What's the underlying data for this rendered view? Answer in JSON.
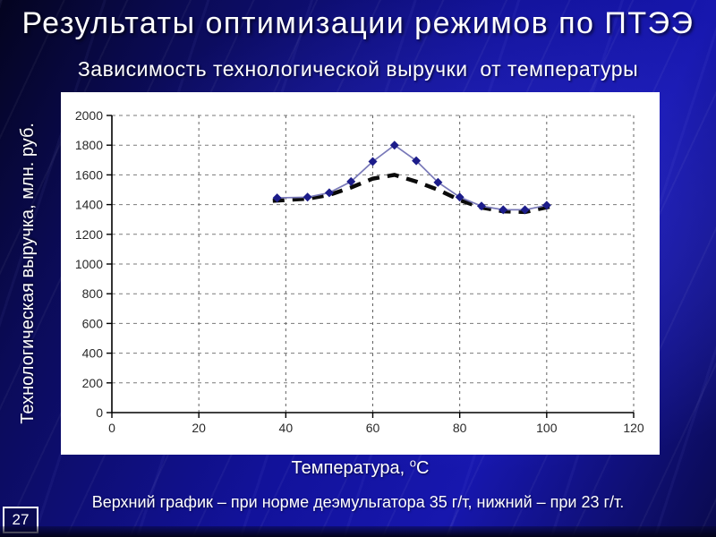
{
  "slide": {
    "title": "Результаты оптимизации режимов по ПТЭЭ",
    "subtitle": "Зависимость технологической выручки  от температуры",
    "caption": "Верхний график – при норме деэмульгатора 35 г/т, нижний – при 23 г/т.",
    "page_number": "27"
  },
  "colors": {
    "background_dark": "#0a0a4e",
    "background_bright": "#1717ae",
    "chart_background": "#ffffff",
    "text": "#ffffff",
    "tick_text": "#2a2a2a",
    "grid": "#7a7a7a",
    "axis": "#000000"
  },
  "chart_data": {
    "type": "line",
    "title": "",
    "xlabel": "Температура, оС",
    "xlabel_parts": {
      "prefix": "Температура, ",
      "sup": "о",
      "suffix": "С"
    },
    "ylabel": "Технологическая выручка, млн. руб.",
    "xlim": [
      0,
      120
    ],
    "ylim": [
      0,
      2000
    ],
    "xticks": [
      0,
      20,
      40,
      60,
      80,
      100,
      120
    ],
    "yticks": [
      0,
      200,
      400,
      600,
      800,
      1000,
      1200,
      1400,
      1600,
      1800,
      2000
    ],
    "grid": true,
    "legend": "none",
    "series": [
      {
        "name": "при норме деэмульгатора 35 г/т (верхний график)",
        "style": "solid",
        "marker": "diamond",
        "line_color": "#7878b8",
        "marker_color": "#1c1c8a",
        "x": [
          38,
          45,
          50,
          55,
          60,
          65,
          70,
          75,
          80,
          85,
          90,
          95,
          100
        ],
        "y": [
          1445,
          1450,
          1480,
          1555,
          1690,
          1800,
          1695,
          1550,
          1450,
          1390,
          1365,
          1365,
          1395
        ]
      },
      {
        "name": "при норме деэмульгатора 23 г/т (нижний график)",
        "style": "dashed",
        "marker": "none",
        "line_color": "#0a0a0a",
        "marker_color": "#0a0a0a",
        "x": [
          37,
          45,
          50,
          55,
          60,
          65,
          70,
          75,
          80,
          85,
          90,
          95,
          101
        ],
        "y": [
          1425,
          1440,
          1465,
          1515,
          1575,
          1600,
          1555,
          1500,
          1430,
          1380,
          1355,
          1350,
          1388
        ]
      }
    ]
  }
}
